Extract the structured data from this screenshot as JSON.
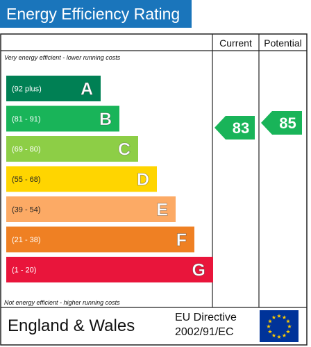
{
  "title": "Energy Efficiency Rating",
  "headers": {
    "current": "Current",
    "potential": "Potential"
  },
  "top_note": "Very energy efficient - lower running costs",
  "bottom_note": "Not energy efficient - higher running costs",
  "footer": {
    "region": "England & Wales",
    "directive_line1": "EU Directive",
    "directive_line2": "2002/91/EC"
  },
  "chart_data": {
    "type": "bar",
    "categories": [
      "A",
      "B",
      "C",
      "D",
      "E",
      "F",
      "G"
    ],
    "bands": [
      {
        "letter": "A",
        "range": "(92 plus)",
        "color": "#008054"
      },
      {
        "letter": "B",
        "range": "(81 - 91)",
        "color": "#19b459"
      },
      {
        "letter": "C",
        "range": "(69 - 80)",
        "color": "#8dce46"
      },
      {
        "letter": "D",
        "range": "(55 - 68)",
        "color": "#ffd500"
      },
      {
        "letter": "E",
        "range": "(39 - 54)",
        "color": "#fcaa65"
      },
      {
        "letter": "F",
        "range": "(21 - 38)",
        "color": "#ef8023"
      },
      {
        "letter": "G",
        "range": "(1 - 20)",
        "color": "#e9153b"
      }
    ],
    "current": {
      "value": 83,
      "band": "B"
    },
    "potential": {
      "value": 85,
      "band": "B"
    }
  },
  "colors": {
    "title_bar": "#1a75bb",
    "eu_flag": "#003399",
    "eu_stars": "#ffcc00"
  }
}
